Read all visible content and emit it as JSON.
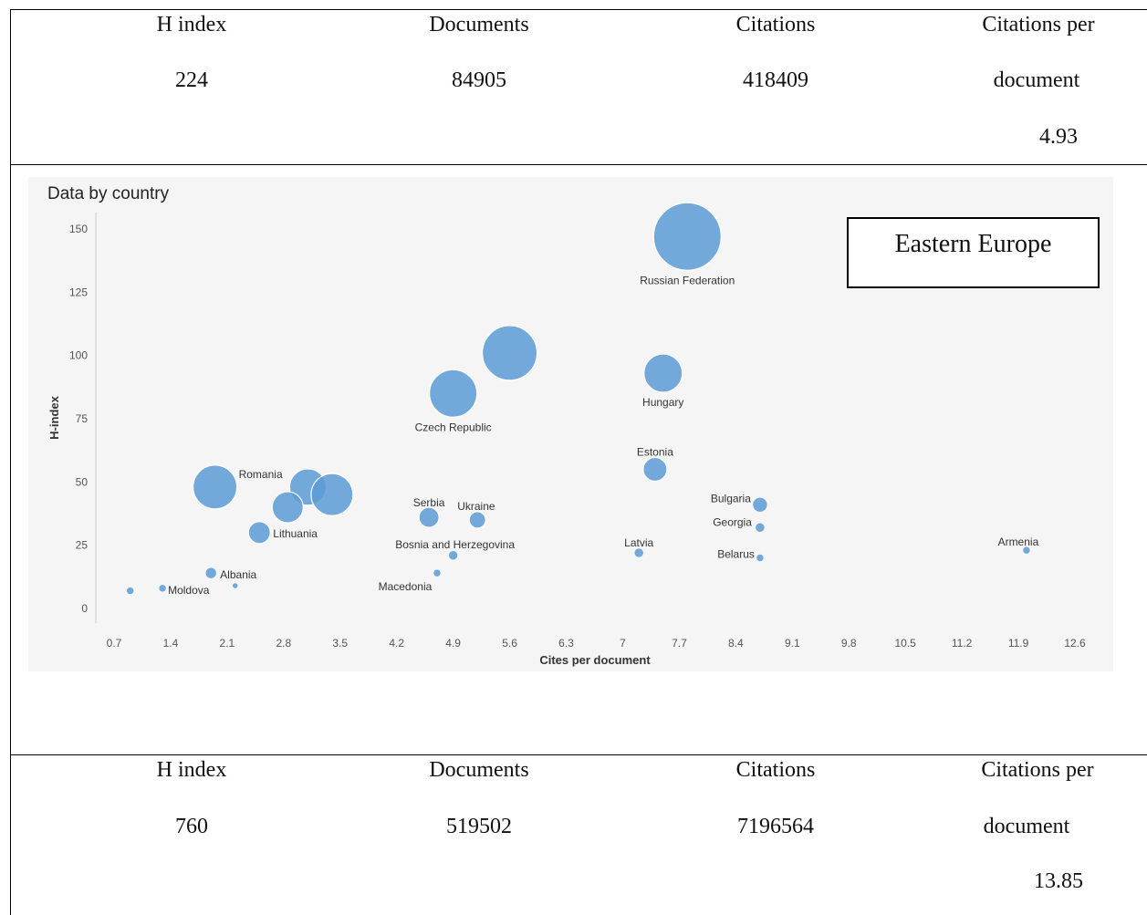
{
  "top_stats": {
    "headers": [
      "H index",
      "Documents",
      "Citations",
      "Citations per"
    ],
    "header_cont": "document",
    "values": [
      "224",
      "84905",
      "418409"
    ],
    "cpd_value": "4.93"
  },
  "bottom_stats": {
    "headers": [
      "H index",
      "Documents",
      "Citations",
      "Citations per"
    ],
    "header_cont": "document",
    "values": [
      "760",
      "519502",
      "7196564"
    ],
    "cpd_value": "13.85"
  },
  "region_box": "Eastern Europe",
  "chart_data": {
    "type": "scatter",
    "title": "Data by country",
    "xlabel": "Cites per document",
    "ylabel": "H-index",
    "xlim": [
      0.5,
      12.7
    ],
    "ylim": [
      -5,
      155
    ],
    "xticks": [
      "0.7",
      "1.4",
      "2.1",
      "2.8",
      "3.5",
      "4.2",
      "4.9",
      "5.6",
      "6.3",
      "7",
      "7.7",
      "8.4",
      "9.1",
      "9.8",
      "10.5",
      "11.2",
      "11.9",
      "12.6"
    ],
    "yticks": [
      "0",
      "25",
      "50",
      "75",
      "100",
      "125",
      "150"
    ],
    "point_color": "#5b9bd5",
    "points": [
      {
        "label": "Russian Federation",
        "x": 7.8,
        "y": 147,
        "size": 37
      },
      {
        "label": "",
        "x": 5.6,
        "y": 101,
        "size": 30
      },
      {
        "label": "Czech Republic",
        "x": 4.9,
        "y": 85,
        "size": 26
      },
      {
        "label": "Hungary",
        "x": 7.5,
        "y": 93,
        "size": 21
      },
      {
        "label": "Estonia",
        "x": 7.4,
        "y": 55,
        "size": 13
      },
      {
        "label": "Romania",
        "x": 1.95,
        "y": 48,
        "size": 24
      },
      {
        "label": "",
        "x": 3.1,
        "y": 48,
        "size": 20
      },
      {
        "label": "",
        "x": 3.4,
        "y": 45,
        "size": 23
      },
      {
        "label": "",
        "x": 2.85,
        "y": 40,
        "size": 17
      },
      {
        "label": "Lithuania",
        "x": 2.5,
        "y": 30,
        "size": 12
      },
      {
        "label": "Serbia",
        "x": 4.6,
        "y": 36,
        "size": 11
      },
      {
        "label": "Ukraine",
        "x": 5.2,
        "y": 35,
        "size": 9
      },
      {
        "label": "Bosnia and Herzegovina",
        "x": 4.9,
        "y": 21,
        "size": 5
      },
      {
        "label": "Macedonia",
        "x": 4.7,
        "y": 14,
        "size": 4
      },
      {
        "label": "Albania",
        "x": 1.9,
        "y": 14,
        "size": 6
      },
      {
        "label": "Moldova",
        "x": 1.3,
        "y": 8,
        "size": 4
      },
      {
        "label": "",
        "x": 2.2,
        "y": 9,
        "size": 3
      },
      {
        "label": "",
        "x": 0.9,
        "y": 7,
        "size": 4
      },
      {
        "label": "Latvia",
        "x": 7.2,
        "y": 22,
        "size": 5
      },
      {
        "label": "Bulgaria",
        "x": 8.7,
        "y": 41,
        "size": 8
      },
      {
        "label": "Georgia",
        "x": 8.7,
        "y": 32,
        "size": 5
      },
      {
        "label": "Belarus",
        "x": 8.7,
        "y": 20,
        "size": 4
      },
      {
        "label": "Armenia",
        "x": 12.0,
        "y": 23,
        "size": 4
      }
    ]
  }
}
